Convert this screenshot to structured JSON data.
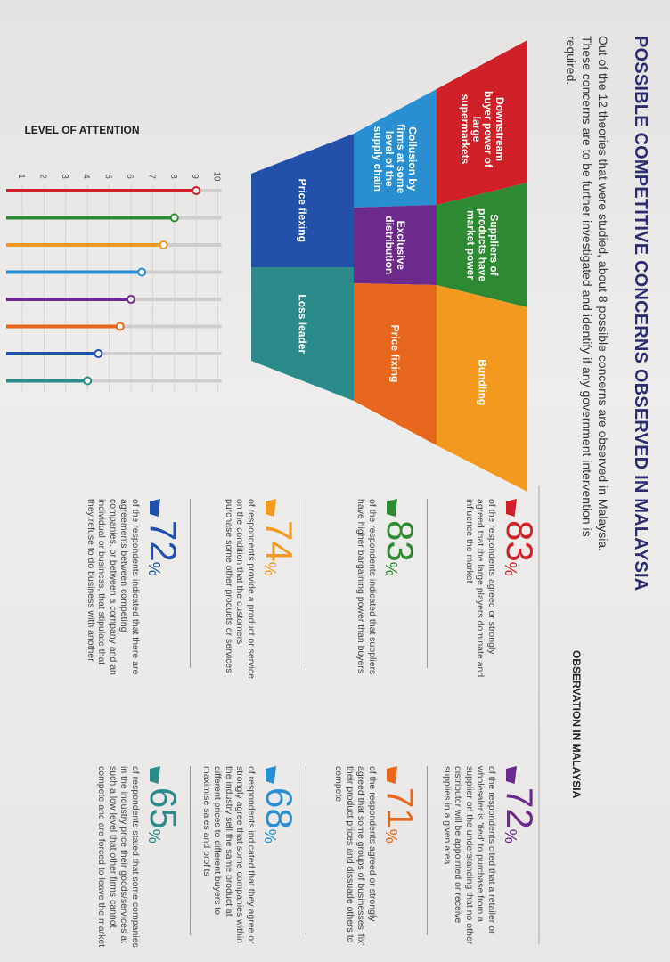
{
  "header": {
    "title": "POSSIBLE COMPETITIVE CONCERNS OBSERVED IN MALAYSIA",
    "intro": "Out of the 12 theories that were studied, about 8 possible concerns are observed in Malaysia. These concerns are to be further investigated and identify if any government intervention is required."
  },
  "observation_heading": "OBSERVATION IN MALAYSIA",
  "funnel": {
    "rows": [
      [
        {
          "label": "Downstream buyer power of large supermarkets",
          "color": "#d0202a"
        },
        {
          "label": "Suppliers of products have market power",
          "color": "#2e8a32"
        },
        {
          "label": "Bundling",
          "color": "#f29a1f"
        }
      ],
      [
        {
          "label": "Collusion by firms at some level of the supply chain",
          "color": "#2a8fd0"
        },
        {
          "label": "Exclusive distribution",
          "color": "#6b2a8c"
        },
        {
          "label": "Price fixing",
          "color": "#e8671e"
        }
      ],
      [
        {
          "label": "Price flexing",
          "color": "#2350a8"
        },
        {
          "label": "Loss leader",
          "color": "#2b8a8a"
        }
      ]
    ]
  },
  "attention": {
    "label": "LEVEL OF ATTENTION",
    "ticks": [
      1,
      2,
      3,
      4,
      5,
      6,
      7,
      8,
      9,
      10
    ],
    "levels": [
      9,
      8,
      7.5,
      6.5,
      6,
      5.5,
      4.5,
      4
    ]
  },
  "observations": [
    {
      "value": 83,
      "suffix": "%",
      "color": "#d0202a",
      "text": "of the respondents agreed or strongly agreed that the large players dominate and influence the market"
    },
    {
      "value": 72,
      "suffix": "%",
      "color": "#6b2a8c",
      "text": "of the respondents cited that a retailer or wholesaler is 'tied' to purchase from a supplier on the understanding that no other distributor will be appointed or receive supplies in a given area"
    },
    {
      "value": 83,
      "suffix": "%",
      "color": "#2e8a32",
      "text": "of the respondents indicated that suppliers have higher bargaining power than buyers"
    },
    {
      "value": 71,
      "suffix": "%",
      "color": "#e8671e",
      "text": "of the respondents agreed or strongly agreed that some groups of businesses 'fix' their product prices and dissuade others to compete"
    },
    {
      "value": 74,
      "suffix": "%",
      "color": "#f29a1f",
      "text": "of respondents provide a product or service on the condition that the customers purchase some other products or services"
    },
    {
      "value": 68,
      "suffix": "%",
      "color": "#2a8fd0",
      "text": "of respondents indicated that they agree or strongly agree that some companies within the industry sell the same product at different prices to different buyers to maximise sales and profits"
    },
    {
      "value": 72,
      "suffix": "%",
      "color": "#2350a8",
      "text": "of the respondents indicated that there are agreements between competing companies, or between a company and an individual or business, that stipulate that they refuse to do business with another"
    },
    {
      "value": 65,
      "suffix": "%",
      "color": "#2b8a8a",
      "text": "of respondents stated that some companies in the industry price their goods/services at such a low level that other firms cannot compete and are forced to leave the market"
    }
  ]
}
